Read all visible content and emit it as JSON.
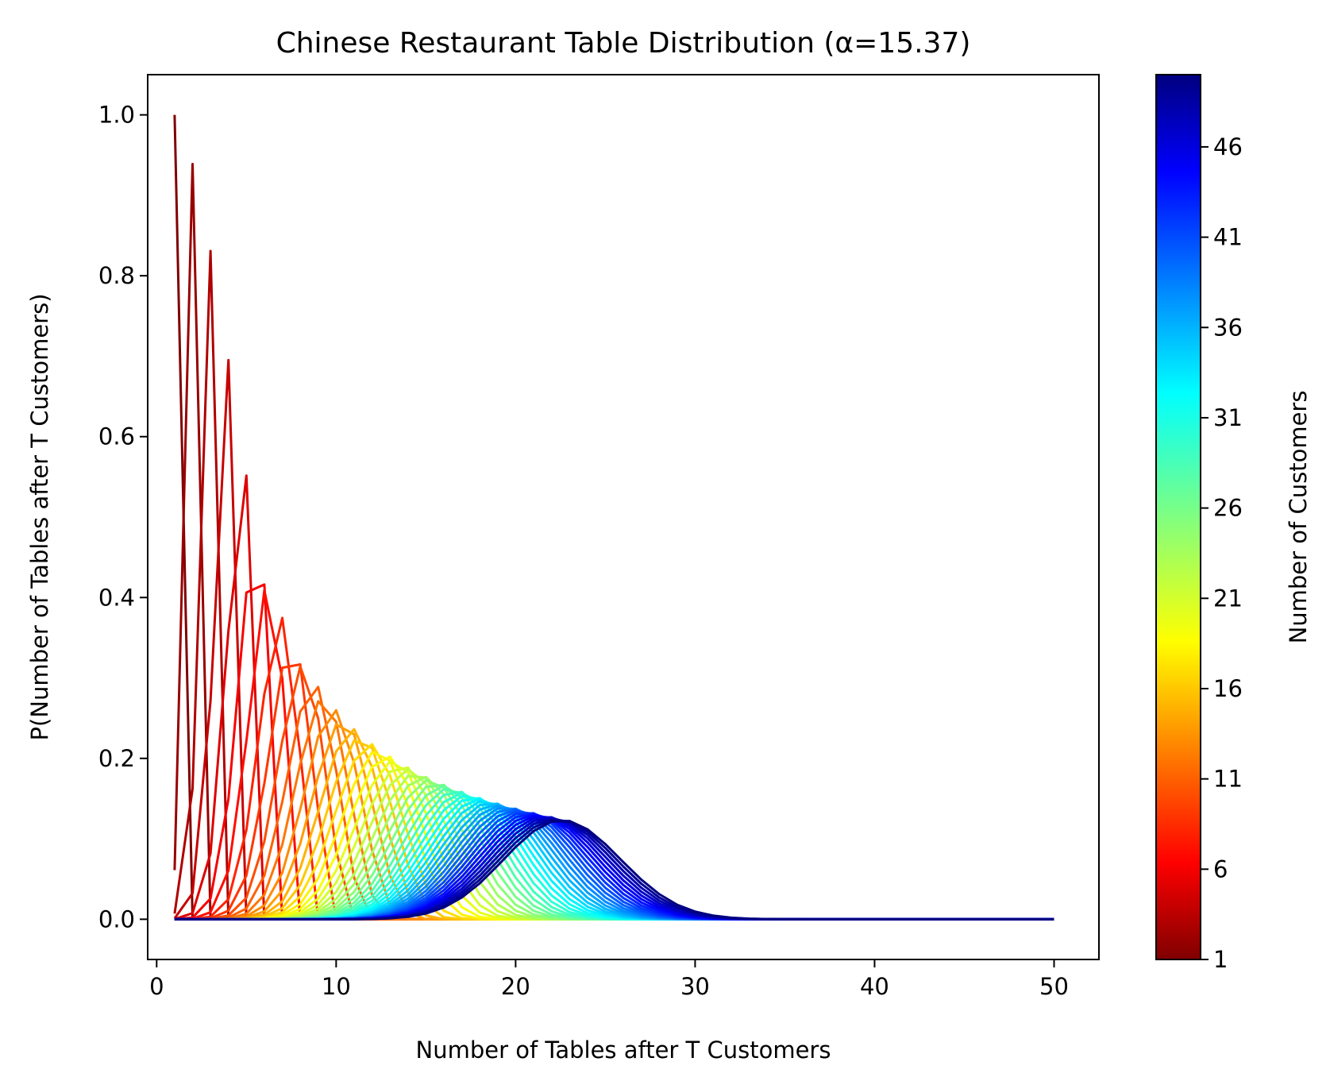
{
  "chart_data": {
    "type": "line",
    "title": "Chinese Restaurant Table Distribution (α=15.37)",
    "alpha": 15.37,
    "xlabel": "Number of Tables after T Customers",
    "ylabel": "P(Number of Tables after T Customers)",
    "xlim": [
      -0.5,
      52.5
    ],
    "ylim": [
      -0.05,
      1.05
    ],
    "xticks": [
      0,
      10,
      20,
      30,
      40,
      50
    ],
    "yticks": [
      0.0,
      0.2,
      0.4,
      0.6,
      0.8,
      1.0
    ],
    "xtick_labels": [
      "0",
      "10",
      "20",
      "30",
      "40",
      "50"
    ],
    "ytick_labels": [
      "0.0",
      "0.2",
      "0.4",
      "0.6",
      "0.8",
      "1.0"
    ],
    "x_domain": [
      1,
      50
    ],
    "series_customer_counts": [
      1,
      50
    ],
    "colormap": "jet",
    "colorbar": {
      "label": "Number of Customers",
      "range": [
        1,
        50
      ],
      "ticks": [
        1,
        6,
        11,
        16,
        21,
        26,
        31,
        36,
        41,
        46
      ],
      "tick_labels": [
        "1",
        "6",
        "11",
        "16",
        "21",
        "26",
        "31",
        "36",
        "41",
        "46"
      ],
      "colors": [
        "#800000",
        "#ff0000",
        "#ffff00",
        "#80ff80",
        "#00ffff",
        "#0000ff",
        "#000080"
      ]
    },
    "grid": false,
    "legend": "none"
  }
}
